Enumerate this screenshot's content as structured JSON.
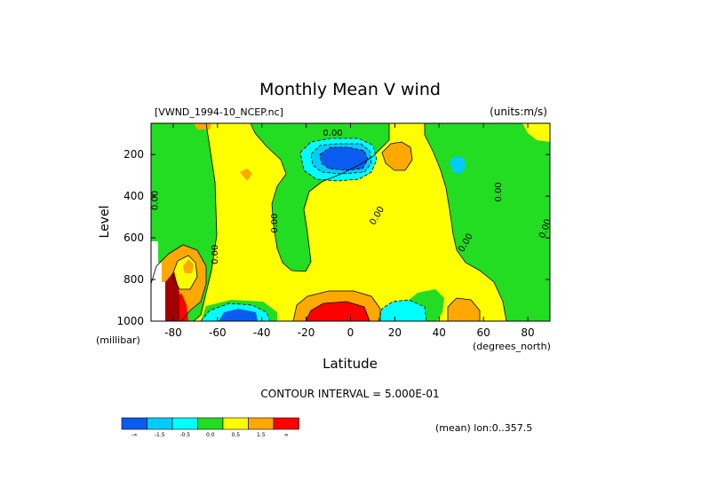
{
  "chart_data": {
    "type": "heatmap",
    "title": "Monthly Mean V wind",
    "dataset_label": "[VWND_1994-10_NCEP.nc]",
    "units_label": "(units:m/s)",
    "xlabel": "Latitude",
    "xunit": "(degrees_north)",
    "ylabel": "Level",
    "yunit": "(millibar)",
    "x_ticks": [
      -80,
      -60,
      -40,
      -20,
      0,
      20,
      40,
      60,
      80
    ],
    "x_tick_labels": [
      "-80",
      "-60",
      "-40",
      "-20",
      "0",
      "20",
      "40",
      "60",
      "80"
    ],
    "y_ticks": [
      200,
      400,
      600,
      800,
      1000
    ],
    "y_tick_labels": [
      "200",
      "400",
      "600",
      "800",
      "1000"
    ],
    "xlim": [
      -90,
      90
    ],
    "ylim": [
      1000,
      50
    ],
    "contour_interval_text": "CONTOUR INTERVAL = 5.000E-01",
    "contour_labels": [
      {
        "text": "0.00",
        "x": -8,
        "y": 110,
        "rotation": 0
      },
      {
        "text": "0.00",
        "x": -87,
        "y": 420,
        "rotation": -90
      },
      {
        "text": "0.00",
        "x": -60,
        "y": 680,
        "rotation": -90
      },
      {
        "text": "0.00",
        "x": -33,
        "y": 530,
        "rotation": -90
      },
      {
        "text": "0.00",
        "x": 13,
        "y": 500,
        "rotation": -60
      },
      {
        "text": "0.00",
        "x": 53,
        "y": 630,
        "rotation": -60
      },
      {
        "text": "0.00",
        "x": 68,
        "y": 380,
        "rotation": -90
      },
      {
        "text": "0.00",
        "x": 89,
        "y": 560,
        "rotation": -70
      }
    ],
    "legend_colors": [
      "#0a5cf0",
      "#00ccff",
      "#00ffff",
      "#22dd22",
      "#ffff00",
      "#ffa800",
      "#ff0000"
    ],
    "legend_tick_labels": [
      "-∞",
      "-1.5",
      "-0.5",
      "0.0",
      "0.5",
      "1.5",
      "∞"
    ],
    "footer_note": "(mean) lon:0..357.5"
  }
}
